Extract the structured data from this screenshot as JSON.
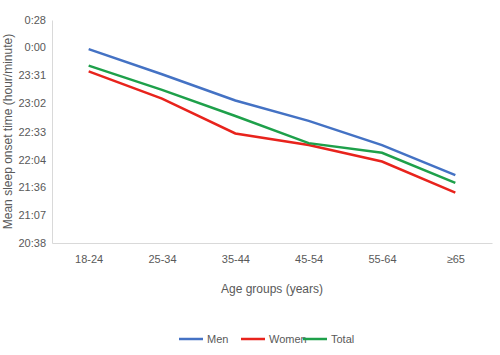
{
  "chart_data": {
    "type": "line",
    "x_label": "Age groups (years)",
    "y_label": "Mean sleep onset time (hour/minute)",
    "categories": [
      "18-24",
      "25-34",
      "35-44",
      "45-54",
      "55-64",
      "≥65"
    ],
    "series": [
      {
        "name": "Men",
        "color": "#4472c4",
        "values": [
          1438,
          1412,
          1385,
          1364,
          1339,
          1308
        ]
      },
      {
        "name": "Women",
        "color": "#e8231c",
        "values": [
          1415,
          1387,
          1351,
          1339,
          1322,
          1290
        ]
      },
      {
        "name": "Total",
        "color": "#1ea04a",
        "values": [
          1421,
          1396,
          1369,
          1341,
          1331,
          1300
        ]
      }
    ],
    "ylim": [
      1238,
      1468
    ],
    "yticks": [
      {
        "value": 1238,
        "label": "20:38"
      },
      {
        "value": 1267,
        "label": "21:07"
      },
      {
        "value": 1296,
        "label": "21:36"
      },
      {
        "value": 1324,
        "label": "22:04"
      },
      {
        "value": 1353,
        "label": "22:33"
      },
      {
        "value": 1382,
        "label": "23:02"
      },
      {
        "value": 1411,
        "label": "23:31"
      },
      {
        "value": 1440,
        "label": "0:00"
      },
      {
        "value": 1468,
        "label": "0:28"
      }
    ],
    "grid": false,
    "legend": "bottom"
  }
}
